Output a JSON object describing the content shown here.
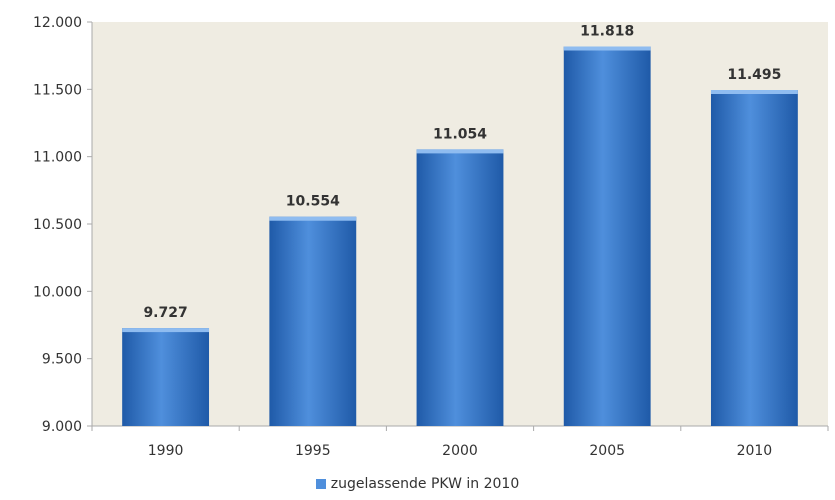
{
  "colors": {
    "plot_background": "#efece2",
    "bar_light": "#4f8fdc",
    "bar_dark": "#1f5aa8",
    "bar_top": "#8fbcf0",
    "axis": "#aaaaaa",
    "text": "#333333"
  },
  "chart_data": {
    "type": "bar",
    "categories": [
      "1990",
      "1995",
      "2000",
      "2005",
      "2010"
    ],
    "series": [
      {
        "name": "zugelassende PKW in 2010",
        "values": [
          9727,
          10554,
          11054,
          11818,
          11495
        ],
        "labels": [
          "9.727",
          "10.554",
          "11.054",
          "11.818",
          "11.495"
        ]
      }
    ],
    "ylim": [
      9000,
      12000
    ],
    "yticks": [
      9000,
      9500,
      10000,
      10500,
      11000,
      11500,
      12000
    ],
    "ytick_labels": [
      "9.000",
      "9.500",
      "10.000",
      "10.500",
      "11.000",
      "11.500",
      "12.000"
    ],
    "grid": false,
    "legend_position": "bottom"
  }
}
